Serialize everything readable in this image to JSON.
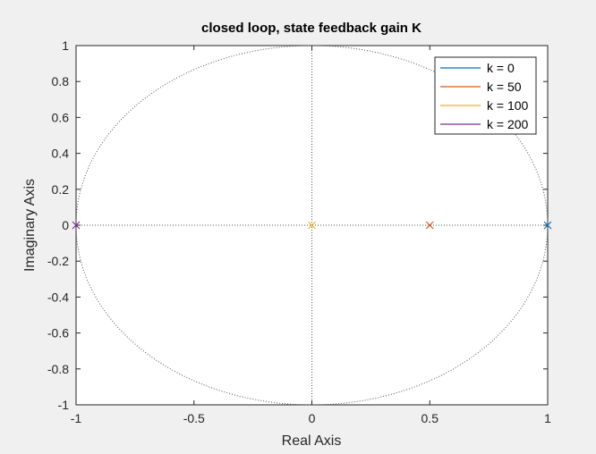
{
  "chart_data": {
    "type": "scatter",
    "title": "closed loop, state feedback gain K",
    "xlabel": "Real Axis",
    "ylabel": "Imaginary Axis",
    "xlim": [
      -1,
      1
    ],
    "ylim": [
      -1,
      1
    ],
    "xticks": [
      "-1",
      "-0.5",
      "0",
      "0.5",
      "1"
    ],
    "yticks": [
      "1",
      "0.8",
      "0.6",
      "0.4",
      "0.2",
      "0",
      "-0.2",
      "-0.4",
      "-0.6",
      "-0.8",
      "-1"
    ],
    "grid": false,
    "unit_circle": true,
    "marker": "x",
    "legend_position": "top-right",
    "series": [
      {
        "name": "k = 0",
        "color": "#0072bd",
        "points": [
          [
            1,
            0
          ]
        ]
      },
      {
        "name": "k = 50",
        "color": "#d95319",
        "points": [
          [
            0.5,
            0
          ]
        ]
      },
      {
        "name": "k = 100",
        "color": "#edb120",
        "points": [
          [
            0,
            0
          ]
        ]
      },
      {
        "name": "k = 200",
        "color": "#7e2f8e",
        "points": [
          [
            -1,
            0
          ]
        ]
      }
    ]
  }
}
